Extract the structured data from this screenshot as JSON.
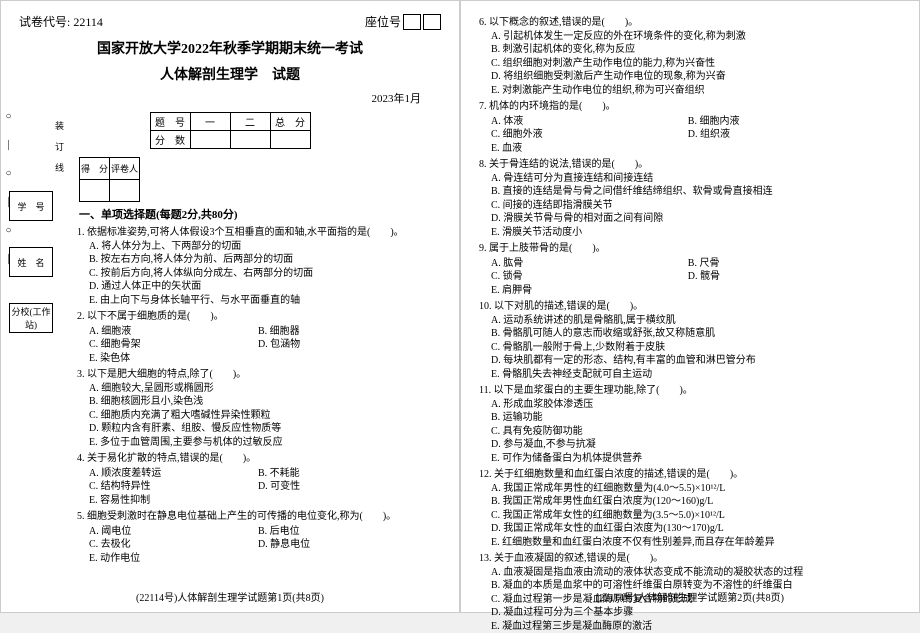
{
  "header": {
    "paper_code_label": "试卷代号:",
    "paper_code": "22114",
    "seat_label": "座位号"
  },
  "titles": {
    "university": "国家开放大学2022年秋季学期期末统一考试",
    "subject": "人体解剖生理学　试题",
    "date": "2023年1月"
  },
  "score_table": {
    "h1": "题　号",
    "c1": "一",
    "c2": "二",
    "c3": "总　分",
    "h2": "分　数"
  },
  "grade_table": {
    "a": "得　分",
    "b": "评卷人"
  },
  "section1": "一、单项选择题(每题2分,共80分)",
  "sidebar": {
    "b1": "学　号",
    "b2": "姓　名",
    "b3": "分校(工作站)"
  },
  "binding": "装订线",
  "dots": "○―○―○―",
  "q": {
    "1": {
      "stem": "1. 依据标准姿势,可将人体假设3个互相垂直的面和轴,水平面指的是(　　)。",
      "a": "A. 将人体分为上、下两部分的切面",
      "b": "B. 按左右方向,将人体分为前、后两部分的切面",
      "c": "C. 按前后方向,将人体纵向分成左、右两部分的切面",
      "d": "D. 通过人体正中的矢状面",
      "e": "E. 由上向下与身体长轴平行、与水平面垂直的轴"
    },
    "2": {
      "stem": "2. 以下不属于细胞质的是(　　)。",
      "a": "A. 细胞液",
      "b": "B. 细胞器",
      "c": "C. 细胞骨架",
      "d": "D. 包涵物",
      "e": "E. 染色体"
    },
    "3": {
      "stem": "3. 以下是肥大细胞的特点,除了(　　)。",
      "a": "A. 细胞较大,呈圆形或椭圆形",
      "b": "B. 细胞核圆形且小,染色浅",
      "c": "C. 细胞质内充满了粗大嗜碱性异染性颗粒",
      "d": "D. 颗粒内含有肝素、组胺、慢反应性物质等",
      "e": "E. 多位于血管周围,主要参与机体的过敏反应"
    },
    "4": {
      "stem": "4. 关于易化扩散的特点,错误的是(　　)。",
      "a": "A. 顺浓度差转运",
      "b": "B. 不耗能",
      "c": "C. 结构特异性",
      "d": "D. 可变性",
      "e": "E. 容易性抑制"
    },
    "5": {
      "stem": "5. 细胞受刺激时在静息电位基础上产生的可传播的电位变化,称为(　　)。",
      "a": "A. 阈电位",
      "b": "B. 后电位",
      "c": "C. 去极化",
      "d": "D. 静息电位",
      "e": "E. 动作电位"
    },
    "6": {
      "stem": "6. 以下概念的叙述,错误的是(　　)。",
      "a": "A. 引起机体发生一定反应的外在环境条件的变化,称为刺激",
      "b": "B. 刺激引起机体的变化,称为反应",
      "c": "C. 组织细胞对刺激产生动作电位的能力,称为兴奋性",
      "d": "D. 将组织细胞受刺激后产生动作电位的现象,称为兴奋",
      "e": "E. 对刺激能产生动作电位的组织,称为可兴奋组织"
    },
    "7": {
      "stem": "7. 机体的内环境指的是(　　)。",
      "a": "A. 体液",
      "b": "B. 细胞内液",
      "c": "C. 细胞外液",
      "d": "D. 组织液",
      "e": "E. 血液"
    },
    "8": {
      "stem": "8. 关于骨连结的说法,错误的是(　　)。",
      "a": "A. 骨连结可分为直接连结和间接连结",
      "b": "B. 直接的连结是骨与骨之间借纤维结缔组织、软骨或骨直接相连",
      "c": "C. 间接的连结即指滑膜关节",
      "d": "D. 滑膜关节骨与骨的相对面之间有间隙",
      "e": "E. 滑膜关节活动度小"
    },
    "9": {
      "stem": "9. 属于上肢带骨的是(　　)。",
      "a": "A. 肱骨",
      "b": "B. 尺骨",
      "c": "C. 锁骨",
      "d": "D. 髋骨",
      "e": "E. 肩胛骨"
    },
    "10": {
      "stem": "10. 以下对肌的描述,错误的是(　　)。",
      "a": "A. 运动系统讲述的肌是骨骼肌,属于横纹肌",
      "b": "B. 骨骼肌可随人的意志而收缩或舒张,故又称随意肌",
      "c": "C. 骨骼肌一般附于骨上,少数附着于皮肤",
      "d": "D. 每块肌都有一定的形态、结构,有丰富的血管和淋巴管分布",
      "e": "E. 骨骼肌失去神经支配就可自主运动"
    },
    "11": {
      "stem": "11. 以下是血浆蛋白的主要生理功能,除了(　　)。",
      "a": "A. 形成血浆胶体渗透压",
      "b": "B. 运输功能",
      "c": "C. 具有免疫防御功能",
      "d": "D. 参与凝血,不参与抗凝",
      "e": "E. 可作为储备蛋白为机体提供营养"
    },
    "12": {
      "stem": "12. 关于红细胞数量和血红蛋白浓度的描述,错误的是(　　)。",
      "a": "A. 我国正常成年男性的红细胞数量为(4.0～5.5)×10¹²/L",
      "b": "B. 我国正常成年男性血红蛋白浓度为(120～160)g/L",
      "c": "C. 我国正常成年女性的红细胞数量为(3.5～5.0)×10¹²/L",
      "d": "D. 我国正常成年女性的血红蛋白浓度为(130～170)g/L",
      "e": "E. 红细胞数量和血红蛋白浓度不仅有性别差异,而且存在年龄差异"
    },
    "13": {
      "stem": "13. 关于血液凝固的叙述,错误的是(　　)。",
      "a": "A. 血液凝固是指血液由流动的液体状态变成不能流动的凝胶状态的过程",
      "b": "B. 凝血的本质是血浆中的可溶性纤维蛋白原转变为不溶性的纤维蛋白",
      "c": "C. 凝血过程第一步是凝血酶原酶复合物的形成",
      "d": "D. 凝血过程可分为三个基本步骤",
      "e": "E. 凝血过程第三步是凝血酶原的激活"
    }
  },
  "footer": {
    "p1": "(22114号)人体解剖生理学试题第1页(共8页)",
    "p2": "(22114号)人体解剖生理学试题第2页(共8页)"
  }
}
